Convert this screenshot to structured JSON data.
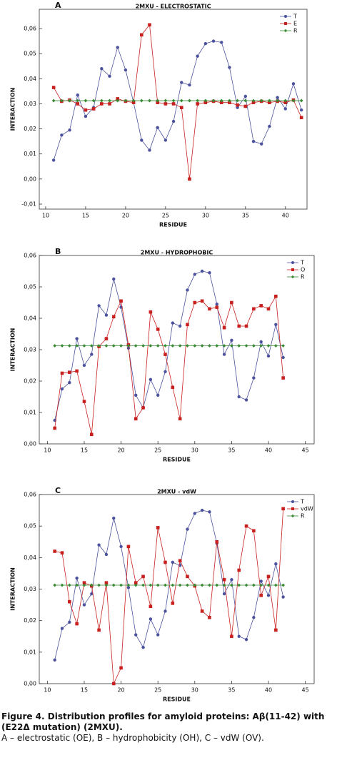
{
  "chart_data": [
    {
      "type": "line",
      "panel": "A",
      "title": "2MXU - ELECTROSTATIC",
      "xlabel": "RESIDUE",
      "ylabel": "INTERACTION",
      "x": [
        11,
        12,
        13,
        14,
        15,
        16,
        17,
        18,
        19,
        20,
        21,
        22,
        23,
        24,
        25,
        26,
        27,
        28,
        29,
        30,
        31,
        32,
        33,
        34,
        35,
        36,
        37,
        38,
        39,
        40,
        41,
        42
      ],
      "series": [
        {
          "name": "T",
          "color": "#4b519c",
          "marker": "circle",
          "values": [
            0.0075,
            0.0175,
            0.0195,
            0.0335,
            0.025,
            0.0285,
            0.044,
            0.041,
            0.0525,
            0.0435,
            0.0305,
            0.0155,
            0.0115,
            0.0205,
            0.0155,
            0.023,
            0.0385,
            0.0375,
            0.049,
            0.054,
            0.055,
            0.0545,
            0.0445,
            0.0285,
            0.033,
            0.015,
            0.014,
            0.021,
            0.0325,
            0.028,
            0.038,
            0.0275
          ]
        },
        {
          "name": "E",
          "color": "#c8201e",
          "marker": "square",
          "values": [
            0.0365,
            0.031,
            0.0315,
            0.03,
            0.0275,
            0.028,
            0.03,
            0.03,
            0.032,
            0.031,
            0.0305,
            0.0575,
            0.0615,
            0.0305,
            0.03,
            0.03,
            0.0285,
            0.0,
            0.03,
            0.0305,
            0.031,
            0.0305,
            0.0305,
            0.0295,
            0.029,
            0.0305,
            0.031,
            0.0305,
            0.031,
            0.0305,
            0.0315,
            0.0245
          ]
        },
        {
          "name": "R",
          "color": "#3a8a35",
          "marker": "diamond",
          "values": [
            0.03125,
            0.03125,
            0.03125,
            0.03125,
            0.03125,
            0.03125,
            0.03125,
            0.03125,
            0.03125,
            0.03125,
            0.03125,
            0.03125,
            0.03125,
            0.03125,
            0.03125,
            0.03125,
            0.03125,
            0.03125,
            0.03125,
            0.03125,
            0.03125,
            0.03125,
            0.03125,
            0.03125,
            0.03125,
            0.03125,
            0.03125,
            0.03125,
            0.03125,
            0.03125,
            0.03125,
            0.03125
          ]
        }
      ],
      "xlim": [
        9.2,
        42.7
      ],
      "xticks": [
        10,
        15,
        20,
        25,
        30,
        35,
        40
      ],
      "ylim": [
        -0.012,
        0.0677
      ],
      "yticks": [
        {
          "value": -0.01,
          "label": "-0,01"
        },
        {
          "value": 0,
          "label": "0,00"
        },
        {
          "value": 0.01,
          "label": "0,01"
        },
        {
          "value": 0.02,
          "label": "0,02"
        },
        {
          "value": 0.03,
          "label": "0,03"
        },
        {
          "value": 0.04,
          "label": "0,04"
        },
        {
          "value": 0.05,
          "label": "0,05"
        },
        {
          "value": 0.06,
          "label": "0,06"
        }
      ],
      "legend": "upper right"
    },
    {
      "type": "line",
      "panel": "B",
      "title": "2MXU - HYDROPHOBIC",
      "xlabel": "RESIDUE",
      "ylabel": "INTERACTION",
      "x": [
        11,
        12,
        13,
        14,
        15,
        16,
        17,
        18,
        19,
        20,
        21,
        22,
        23,
        24,
        25,
        26,
        27,
        28,
        29,
        30,
        31,
        32,
        33,
        34,
        35,
        36,
        37,
        38,
        39,
        40,
        41,
        42
      ],
      "series": [
        {
          "name": "T",
          "color": "#4b519c",
          "marker": "circle",
          "values": [
            0.0075,
            0.0175,
            0.0195,
            0.0335,
            0.025,
            0.0285,
            0.044,
            0.041,
            0.0525,
            0.0435,
            0.0305,
            0.0155,
            0.0115,
            0.0205,
            0.0155,
            0.023,
            0.0385,
            0.0375,
            0.049,
            0.054,
            0.055,
            0.0545,
            0.0445,
            0.0285,
            0.033,
            0.015,
            0.014,
            0.021,
            0.0325,
            0.028,
            0.038,
            0.0275
          ]
        },
        {
          "name": "O",
          "color": "#c8201e",
          "marker": "square",
          "values": [
            0.005,
            0.0225,
            0.0228,
            0.0232,
            0.0135,
            0.003,
            0.031,
            0.0335,
            0.0405,
            0.0455,
            0.0315,
            0.008,
            0.0115,
            0.042,
            0.0365,
            0.0285,
            0.018,
            0.008,
            0.038,
            0.045,
            0.0455,
            0.043,
            0.0435,
            0.037,
            0.045,
            0.0375,
            0.0375,
            0.043,
            0.044,
            0.043,
            0.047,
            0.021
          ]
        },
        {
          "name": "R",
          "color": "#3a8a35",
          "marker": "diamond",
          "values": [
            0.03125,
            0.03125,
            0.03125,
            0.03125,
            0.03125,
            0.03125,
            0.03125,
            0.03125,
            0.03125,
            0.03125,
            0.03125,
            0.03125,
            0.03125,
            0.03125,
            0.03125,
            0.03125,
            0.03125,
            0.03125,
            0.03125,
            0.03125,
            0.03125,
            0.03125,
            0.03125,
            0.03125,
            0.03125,
            0.03125,
            0.03125,
            0.03125,
            0.03125,
            0.03125,
            0.03125,
            0.03125
          ]
        }
      ],
      "xlim": [
        8.9,
        46.2
      ],
      "xticks": [
        10,
        15,
        20,
        25,
        30,
        35,
        40,
        45
      ],
      "ylim": [
        0,
        0.06
      ],
      "yticks": [
        {
          "value": 0,
          "label": "0,00"
        },
        {
          "value": 0.01,
          "label": "0,01"
        },
        {
          "value": 0.02,
          "label": "0,02"
        },
        {
          "value": 0.03,
          "label": "0,03"
        },
        {
          "value": 0.04,
          "label": "0,04"
        },
        {
          "value": 0.05,
          "label": "0,05"
        },
        {
          "value": 0.06,
          "label": "0,06"
        }
      ],
      "legend": "upper right"
    },
    {
      "type": "line",
      "panel": "C",
      "title": "2MXU - vdW",
      "xlabel": "RESIDUE",
      "ylabel": "INTERACTION",
      "x": [
        11,
        12,
        13,
        14,
        15,
        16,
        17,
        18,
        19,
        20,
        21,
        22,
        23,
        24,
        25,
        26,
        27,
        28,
        29,
        30,
        31,
        32,
        33,
        34,
        35,
        36,
        37,
        38,
        39,
        40,
        41,
        42
      ],
      "series": [
        {
          "name": "T",
          "color": "#4b519c",
          "marker": "circle",
          "values": [
            0.0075,
            0.0175,
            0.0195,
            0.0335,
            0.025,
            0.0285,
            0.044,
            0.041,
            0.0525,
            0.0435,
            0.0305,
            0.0155,
            0.0115,
            0.0205,
            0.0155,
            0.023,
            0.0385,
            0.0375,
            0.049,
            0.054,
            0.055,
            0.0545,
            0.0445,
            0.0285,
            0.033,
            0.015,
            0.014,
            0.021,
            0.0325,
            0.028,
            0.038,
            0.0275
          ]
        },
        {
          "name": "vdW",
          "color": "#c8201e",
          "marker": "square",
          "values": [
            0.042,
            0.0415,
            0.026,
            0.019,
            0.032,
            0.031,
            0.017,
            0.032,
            0.0,
            0.005,
            0.0435,
            0.032,
            0.034,
            0.0245,
            0.0495,
            0.0385,
            0.0255,
            0.039,
            0.034,
            0.031,
            0.023,
            0.021,
            0.045,
            0.033,
            0.015,
            0.036,
            0.05,
            0.0485,
            0.028,
            0.034,
            0.017,
            0.0555
          ]
        },
        {
          "name": "R",
          "color": "#3a8a35",
          "marker": "diamond",
          "values": [
            0.03125,
            0.03125,
            0.03125,
            0.03125,
            0.03125,
            0.03125,
            0.03125,
            0.03125,
            0.03125,
            0.03125,
            0.03125,
            0.03125,
            0.03125,
            0.03125,
            0.03125,
            0.03125,
            0.03125,
            0.03125,
            0.03125,
            0.03125,
            0.03125,
            0.03125,
            0.03125,
            0.03125,
            0.03125,
            0.03125,
            0.03125,
            0.03125,
            0.03125,
            0.03125,
            0.03125,
            0.03125
          ]
        }
      ],
      "xlim": [
        8.9,
        46.2
      ],
      "xticks": [
        10,
        15,
        20,
        25,
        30,
        35,
        40,
        45
      ],
      "ylim": [
        0,
        0.06
      ],
      "yticks": [
        {
          "value": 0,
          "label": "0,00"
        },
        {
          "value": 0.01,
          "label": "0,01"
        },
        {
          "value": 0.02,
          "label": "0,02"
        },
        {
          "value": 0.03,
          "label": "0,03"
        },
        {
          "value": 0.04,
          "label": "0,04"
        },
        {
          "value": 0.05,
          "label": "0,05"
        },
        {
          "value": 0.06,
          "label": "0,06"
        }
      ],
      "legend": "upper right"
    }
  ],
  "caption": {
    "title": "Figure 4. Distribution profiles for amyloid proteins: Aβ(11-42) with (E22Δ mutation) (2MXU).",
    "text": "A – electrostatic (OE), B – hydrophobicity (OH), C – vdW (OV)."
  }
}
